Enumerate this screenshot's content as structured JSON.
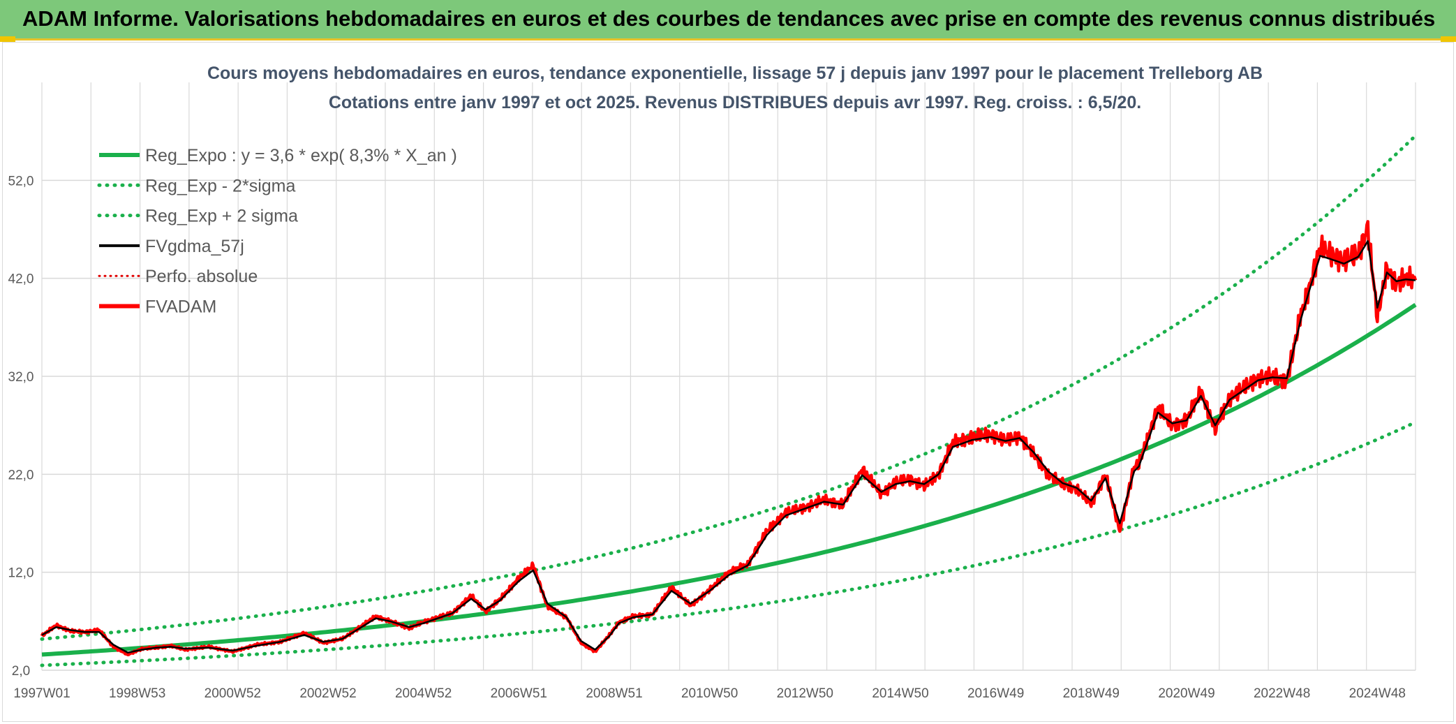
{
  "header": {
    "title": "ADAM Informe. Valorisations hebdomadaires en euros et des courbes de tendances avec prise en compte des revenus connus distribués"
  },
  "colors": {
    "banner": "#7dc87a",
    "accent": "#f1c500",
    "reg_expo": "#1ab04b",
    "sigma": "#1ab04b",
    "fvgdma": "#000000",
    "perfo": "#e00000",
    "fvadam": "#ff0000",
    "grid": "#d9d9d9"
  },
  "chart_data": {
    "type": "line",
    "title_line1": "Cours moyens hebdomadaires en euros, tendance exponentielle, lissage 57 j depuis janv 1997 pour le placement Trelleborg AB",
    "title_line2": "Cotations entre janv 1997 et oct 2025. Revenus DISTRIBUES depuis avr 1997. Reg. croiss. : 6,5/20.",
    "ylim": [
      2.0,
      62.0
    ],
    "xlim": [
      1997.0,
      2025.8
    ],
    "y_ticks": [
      "2,0",
      "12,0",
      "22,0",
      "32,0",
      "42,0",
      "52,0"
    ],
    "y_tick_values": [
      2,
      12,
      22,
      32,
      42,
      52
    ],
    "x_ticks": [
      "1997W01",
      "1998W53",
      "2000W52",
      "2002W52",
      "2004W52",
      "2006W51",
      "2008W51",
      "2010W50",
      "2012W50",
      "2014W50",
      "2016W49",
      "2018W49",
      "2020W49",
      "2022W48",
      "2024W48"
    ],
    "x_tick_values": [
      1997.0,
      1999.0,
      2001.0,
      2003.0,
      2005.0,
      2007.0,
      2009.0,
      2011.0,
      2013.0,
      2015.0,
      2017.0,
      2019.0,
      2021.0,
      2023.0,
      2025.0
    ],
    "legend": [
      {
        "label": "Reg_Expo : y = 3,6 * exp( 8,3% *  X_an )",
        "style": "solid-thick",
        "color": "#1ab04b"
      },
      {
        "label": "Reg_Exp - 2*sigma",
        "style": "dotted",
        "color": "#1ab04b"
      },
      {
        "label": "Reg_Exp + 2 sigma",
        "style": "dotted",
        "color": "#1ab04b"
      },
      {
        "label": "FVgdma_57j",
        "style": "solid",
        "color": "#000000"
      },
      {
        "label": "Perfo. absolue",
        "style": "dotted-thin",
        "color": "#e00000"
      },
      {
        "label": "FVADAM",
        "style": "solid-thick",
        "color": "#ff0000"
      }
    ],
    "regression": {
      "a": 3.6,
      "rate": 0.083,
      "start_year": 1997.0
    },
    "sigma_lower_factor": 0.695,
    "sigma_upper_factor": 1.439,
    "series": [
      {
        "name": "FVADAM",
        "x": [
          1997.0,
          1997.3,
          1997.6,
          1997.9,
          1998.2,
          1998.5,
          1998.8,
          1999.1,
          1999.4,
          1999.7,
          2000.0,
          2000.5,
          2001.0,
          2001.5,
          2002.0,
          2002.5,
          2002.9,
          2003.3,
          2003.7,
          2004.0,
          2004.3,
          2004.7,
          2005.0,
          2005.3,
          2005.6,
          2006.0,
          2006.3,
          2006.6,
          2007.0,
          2007.3,
          2007.6,
          2008.0,
          2008.3,
          2008.6,
          2008.9,
          2009.1,
          2009.4,
          2009.8,
          2010.2,
          2010.6,
          2011.0,
          2011.4,
          2011.8,
          2012.2,
          2012.6,
          2013.0,
          2013.4,
          2013.8,
          2014.2,
          2014.6,
          2014.9,
          2015.2,
          2015.5,
          2015.8,
          2016.1,
          2016.5,
          2016.9,
          2017.2,
          2017.5,
          2017.8,
          2018.1,
          2018.4,
          2018.7,
          2019.0,
          2019.3,
          2019.6,
          2019.9,
          2020.0,
          2020.1,
          2020.4,
          2020.7,
          2021.0,
          2021.3,
          2021.6,
          2021.9,
          2022.2,
          2022.5,
          2022.8,
          2023.1,
          2023.4,
          2023.6,
          2023.8,
          2024.0,
          2024.3,
          2024.6,
          2024.8,
          2025.0,
          2025.2,
          2025.4,
          2025.6,
          2025.8
        ],
        "values": [
          5.5,
          6.6,
          6.0,
          5.9,
          6.1,
          4.4,
          3.6,
          4.2,
          4.3,
          4.5,
          4.1,
          4.4,
          3.9,
          4.6,
          4.9,
          5.8,
          4.8,
          5.2,
          6.5,
          7.5,
          7.0,
          6.3,
          6.9,
          7.4,
          7.8,
          9.6,
          8.0,
          9.2,
          11.4,
          12.7,
          8.5,
          7.4,
          4.8,
          3.9,
          5.6,
          6.9,
          7.5,
          7.7,
          10.5,
          8.6,
          10.2,
          12.0,
          12.8,
          16.2,
          18.1,
          18.6,
          19.4,
          18.9,
          22.5,
          20.0,
          21.2,
          21.5,
          20.8,
          22.0,
          25.2,
          25.8,
          26.1,
          25.4,
          25.9,
          24.0,
          22.0,
          21.0,
          20.5,
          19.0,
          22.0,
          16.2,
          22.8,
          23.0,
          24.5,
          28.8,
          27.0,
          27.5,
          30.5,
          26.6,
          29.8,
          30.8,
          31.8,
          32.0,
          31.5,
          38.4,
          41.5,
          45.2,
          44.5,
          43.8,
          44.5,
          47.2,
          38.0,
          43.0,
          41.5,
          42.0,
          41.8
        ]
      },
      {
        "name": "FVgdma_57j",
        "x": [
          1997.0,
          1997.3,
          1997.6,
          1997.9,
          1998.2,
          1998.5,
          1998.8,
          1999.1,
          1999.4,
          1999.7,
          2000.0,
          2000.5,
          2001.0,
          2001.5,
          2002.0,
          2002.5,
          2002.9,
          2003.3,
          2003.7,
          2004.0,
          2004.3,
          2004.7,
          2005.0,
          2005.3,
          2005.6,
          2006.0,
          2006.3,
          2006.6,
          2007.0,
          2007.3,
          2007.6,
          2008.0,
          2008.3,
          2008.6,
          2008.9,
          2009.1,
          2009.4,
          2009.8,
          2010.2,
          2010.6,
          2011.0,
          2011.4,
          2011.8,
          2012.2,
          2012.6,
          2013.0,
          2013.4,
          2013.8,
          2014.2,
          2014.6,
          2014.9,
          2015.2,
          2015.5,
          2015.8,
          2016.1,
          2016.5,
          2016.9,
          2017.2,
          2017.5,
          2017.8,
          2018.1,
          2018.4,
          2018.7,
          2019.0,
          2019.3,
          2019.6,
          2019.9,
          2020.0,
          2020.1,
          2020.4,
          2020.7,
          2021.0,
          2021.3,
          2021.6,
          2021.9,
          2022.2,
          2022.5,
          2022.8,
          2023.1,
          2023.4,
          2023.6,
          2023.8,
          2024.0,
          2024.3,
          2024.6,
          2024.8,
          2025.0,
          2025.2,
          2025.4,
          2025.6,
          2025.8
        ],
        "values": [
          5.6,
          6.4,
          6.1,
          5.9,
          5.9,
          4.6,
          3.8,
          4.1,
          4.3,
          4.4,
          4.2,
          4.3,
          4.0,
          4.5,
          4.9,
          5.6,
          4.9,
          5.2,
          6.4,
          7.3,
          7.0,
          6.4,
          6.8,
          7.3,
          7.8,
          9.3,
          8.2,
          9.1,
          11.1,
          12.2,
          8.8,
          7.4,
          5.0,
          4.1,
          5.5,
          6.8,
          7.4,
          7.7,
          10.1,
          8.8,
          10.1,
          11.7,
          12.7,
          15.8,
          17.8,
          18.5,
          19.2,
          18.9,
          21.9,
          20.2,
          21.0,
          21.3,
          21.0,
          22.0,
          24.8,
          25.5,
          25.8,
          25.4,
          25.7,
          24.2,
          22.3,
          21.1,
          20.6,
          19.3,
          21.6,
          17.0,
          22.3,
          22.8,
          24.2,
          28.3,
          27.2,
          27.5,
          30.0,
          27.0,
          29.6,
          30.6,
          31.6,
          31.9,
          31.8,
          37.9,
          41.2,
          44.3,
          44.0,
          43.5,
          44.2,
          45.8,
          39.0,
          42.6,
          41.7,
          41.9,
          41.8
        ]
      }
    ]
  }
}
